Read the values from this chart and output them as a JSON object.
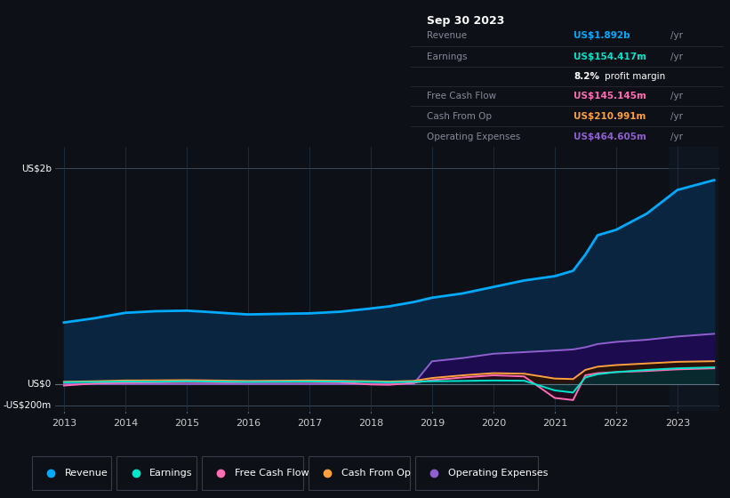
{
  "bg_color": "#0d1117",
  "chart_bg": "#0d1b2e",
  "title": "Sep 30 2023",
  "ylabel_top": "US$2b",
  "ylabel_zero": "US$0",
  "ylabel_bottom": "-US$200m",
  "x_years": [
    2013,
    2013.5,
    2014,
    2014.5,
    2015,
    2015.3,
    2015.7,
    2016,
    2016.5,
    2017,
    2017.5,
    2018,
    2018.3,
    2018.7,
    2019,
    2019.5,
    2020,
    2020.5,
    2021,
    2021.3,
    2021.5,
    2021.7,
    2022,
    2022.5,
    2023,
    2023.6
  ],
  "revenue": [
    570,
    610,
    660,
    675,
    680,
    670,
    655,
    645,
    650,
    655,
    670,
    700,
    720,
    760,
    800,
    840,
    900,
    960,
    1000,
    1050,
    1200,
    1380,
    1430,
    1580,
    1800,
    1892
  ],
  "earnings": [
    15,
    18,
    22,
    20,
    25,
    23,
    20,
    18,
    20,
    22,
    22,
    18,
    15,
    20,
    25,
    28,
    32,
    30,
    -60,
    -80,
    60,
    90,
    110,
    130,
    145,
    154
  ],
  "free_cash_flow": [
    -15,
    5,
    12,
    15,
    18,
    17,
    15,
    18,
    18,
    18,
    15,
    -5,
    -8,
    10,
    35,
    60,
    80,
    70,
    -130,
    -150,
    80,
    100,
    110,
    120,
    135,
    145
  ],
  "cash_from_op": [
    20,
    25,
    32,
    33,
    35,
    33,
    30,
    28,
    30,
    32,
    30,
    25,
    22,
    28,
    55,
    80,
    100,
    95,
    50,
    45,
    130,
    160,
    175,
    190,
    205,
    211
  ],
  "operating_expenses": [
    0,
    0,
    0,
    0,
    0,
    0,
    0,
    0,
    0,
    0,
    0,
    0,
    0,
    0,
    210,
    240,
    280,
    295,
    310,
    320,
    340,
    370,
    390,
    410,
    440,
    465
  ],
  "revenue_color": "#00aaff",
  "revenue_fill": "#0a2540",
  "earnings_color": "#00e5cc",
  "earnings_fill": "#003333",
  "free_cash_flow_color": "#ff6eb4",
  "free_cash_flow_fill": "#2a0820",
  "cash_from_op_color": "#ffa040",
  "cash_from_op_fill": "#2a1500",
  "operating_expenses_color": "#9060d0",
  "operating_expenses_fill": "#1e0a50",
  "ylim_min": -250,
  "ylim_max": 2200,
  "legend_items": [
    "Revenue",
    "Earnings",
    "Free Cash Flow",
    "Cash From Op",
    "Operating Expenses"
  ],
  "legend_colors": [
    "#00aaff",
    "#00e5cc",
    "#ff6eb4",
    "#ffa040",
    "#9060d0"
  ],
  "table_rows": [
    {
      "label": "Revenue",
      "value": "US$1.892b",
      "suffix": " /yr",
      "color": "#00aaff"
    },
    {
      "label": "Earnings",
      "value": "US$154.417m",
      "suffix": " /yr",
      "color": "#00e5cc"
    },
    {
      "label": "",
      "value": "8.2%",
      "suffix": " profit margin",
      "color": "white"
    },
    {
      "label": "Free Cash Flow",
      "value": "US$145.145m",
      "suffix": " /yr",
      "color": "#ff6eb4"
    },
    {
      "label": "Cash From Op",
      "value": "US$210.991m",
      "suffix": " /yr",
      "color": "#ffa040"
    },
    {
      "label": "Operating Expenses",
      "value": "US$464.605m",
      "suffix": " /yr",
      "color": "#9060d0"
    }
  ]
}
